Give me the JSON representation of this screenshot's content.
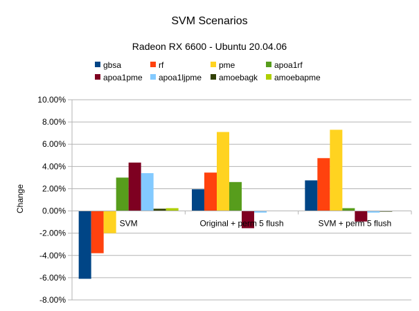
{
  "chart_data": {
    "type": "bar",
    "title": "SVM Scenarios",
    "subtitle": "Radeon RX 6600 - Ubuntu 20.04.06",
    "ylabel": "Change",
    "xlabel": "",
    "ylim": [
      -0.08,
      0.1
    ],
    "ytick_step": 0.02,
    "ytick_labels": [
      "10.00%",
      "8.00%",
      "6.00%",
      "4.00%",
      "2.00%",
      "0.00%",
      "-2.00%",
      "-4.00%",
      "-6.00%",
      "-8.00%"
    ],
    "grid": "y",
    "legend_position": "top",
    "categories": [
      "SVM",
      "Original + perm 5 flush",
      "SVM + perm 5 flush"
    ],
    "series": [
      {
        "name": "gbsa",
        "color": "#004586",
        "values": [
          -0.061,
          0.0195,
          0.0275
        ]
      },
      {
        "name": "rf",
        "color": "#ff420e",
        "values": [
          -0.038,
          0.0345,
          0.0475
        ]
      },
      {
        "name": "pme",
        "color": "#ffd320",
        "values": [
          -0.02,
          0.071,
          0.073
        ]
      },
      {
        "name": "apoa1rf",
        "color": "#579d1c",
        "values": [
          0.03,
          0.026,
          0.0025
        ]
      },
      {
        "name": "apoa1pme",
        "color": "#7e0021",
        "values": [
          0.0435,
          -0.0155,
          -0.0095
        ]
      },
      {
        "name": "apoa1ljpme",
        "color": "#83caff",
        "values": [
          0.034,
          -0.0015,
          -0.0015
        ]
      },
      {
        "name": "amoebagk",
        "color": "#314004",
        "values": [
          0.002,
          0.0,
          -0.0005
        ]
      },
      {
        "name": "amoebapme",
        "color": "#aecf00",
        "values": [
          0.0025,
          0.0,
          0.0
        ]
      }
    ]
  }
}
